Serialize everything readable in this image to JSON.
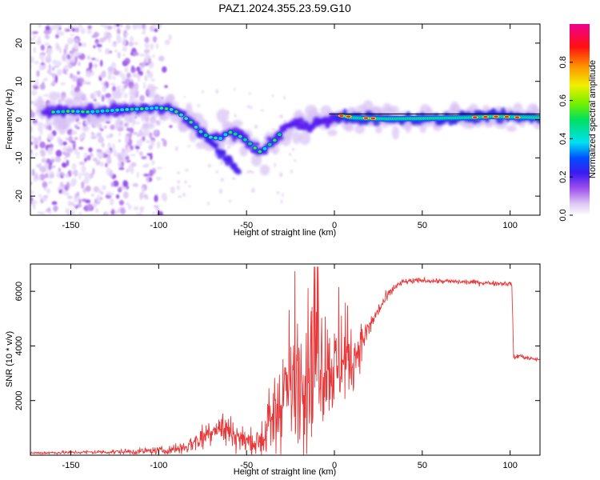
{
  "title": "PAZ1.2024.355.23.59.G10",
  "colors": {
    "snr_line": "#e8393a",
    "axis": "#000000",
    "track_ref": "#000000"
  },
  "chart_data": [
    {
      "type": "heatmap",
      "xlabel": "Height of straight line (km)",
      "ylabel": "Frequency (Hz)",
      "xlim": [
        -173,
        117
      ],
      "ylim": [
        -25,
        25
      ],
      "xticks": [
        -150,
        -100,
        -50,
        0,
        50,
        100
      ],
      "yticks": [
        -20,
        -10,
        0,
        10,
        20
      ],
      "colorbar": {
        "label": "Normalized spectral amplitude",
        "range": [
          0,
          1
        ],
        "ticks": [
          0.0,
          0.2,
          0.4,
          0.6,
          0.8
        ],
        "colormap": "rainbow (white-lavender-purple-blue-cyan-green-yellow-red-magenta)"
      },
      "main_track": [
        {
          "x": -160,
          "y": 2
        },
        {
          "x": -150,
          "y": 2.2
        },
        {
          "x": -140,
          "y": 2
        },
        {
          "x": -130,
          "y": 2.3
        },
        {
          "x": -120,
          "y": 2.6
        },
        {
          "x": -110,
          "y": 2.8
        },
        {
          "x": -100,
          "y": 3.1
        },
        {
          "x": -92,
          "y": 2.6
        },
        {
          "x": -88,
          "y": 1.5
        },
        {
          "x": -82,
          "y": -0.5
        },
        {
          "x": -77,
          "y": -2.8
        },
        {
          "x": -72,
          "y": -4.5
        },
        {
          "x": -65,
          "y": -5
        },
        {
          "x": -60,
          "y": -3.2
        },
        {
          "x": -55,
          "y": -4
        },
        {
          "x": -50,
          "y": -5.5
        },
        {
          "x": -45,
          "y": -7.5
        },
        {
          "x": -42,
          "y": -8.5
        },
        {
          "x": -38,
          "y": -7
        },
        {
          "x": -33,
          "y": -5
        },
        {
          "x": -28,
          "y": -2
        },
        {
          "x": -22,
          "y": -1
        },
        {
          "x": -15,
          "y": -1.5
        },
        {
          "x": -8,
          "y": -0.5
        },
        {
          "x": -3,
          "y": 0
        },
        {
          "x": 0,
          "y": 0.3
        },
        {
          "x": 5,
          "y": 1
        },
        {
          "x": 10,
          "y": 0.5
        },
        {
          "x": 20,
          "y": 0.3
        },
        {
          "x": 30,
          "y": 0.2
        },
        {
          "x": 50,
          "y": 0.3
        },
        {
          "x": 75,
          "y": 0.5
        },
        {
          "x": 90,
          "y": 0.8
        },
        {
          "x": 100,
          "y": 0.7
        },
        {
          "x": 117,
          "y": 0.5
        }
      ],
      "secondary_track": [
        {
          "x": -77,
          "y": -3
        },
        {
          "x": -70,
          "y": -6
        },
        {
          "x": -64,
          "y": -9
        },
        {
          "x": -58,
          "y": -11.5
        },
        {
          "x": -54,
          "y": -13.5
        }
      ],
      "reference_line": {
        "x_start": -3,
        "x_end": 117,
        "y": 1.5
      }
    },
    {
      "type": "line",
      "xlabel": "Height of straight line (km)",
      "ylabel": "SNR (10 * v/v)",
      "xlim": [
        -173,
        117
      ],
      "ylim": [
        0,
        7000
      ],
      "xticks": [
        -150,
        -100,
        -50,
        0,
        50,
        100
      ],
      "yticks": [
        2000,
        4000,
        6000
      ],
      "series": [
        {
          "envelope": [
            [
              -173,
              80
            ],
            [
              -140,
              110
            ],
            [
              -115,
              130
            ],
            [
              -95,
              180
            ],
            [
              -85,
              300
            ],
            [
              -75,
              650
            ],
            [
              -68,
              1050
            ],
            [
              -60,
              900
            ],
            [
              -52,
              550
            ],
            [
              -45,
              450
            ],
            [
              -40,
              700
            ],
            [
              -35,
              1200
            ],
            [
              -30,
              2000
            ],
            [
              -25,
              2500
            ],
            [
              -20,
              2800
            ],
            [
              -15,
              3300
            ],
            [
              -10,
              3500
            ],
            [
              -5,
              3300
            ],
            [
              0,
              3100
            ],
            [
              5,
              3300
            ],
            [
              10,
              3400
            ],
            [
              15,
              4100
            ],
            [
              20,
              4700
            ],
            [
              25,
              5300
            ],
            [
              30,
              5800
            ],
            [
              35,
              6200
            ],
            [
              40,
              6350
            ],
            [
              50,
              6400
            ],
            [
              60,
              6370
            ],
            [
              70,
              6350
            ],
            [
              80,
              6330
            ],
            [
              90,
              6300
            ],
            [
              100,
              6280
            ],
            [
              101,
              6250
            ],
            [
              102,
              3550
            ],
            [
              105,
              3650
            ],
            [
              110,
              3550
            ],
            [
              117,
              3500
            ]
          ],
          "noise": [
            [
              -173,
              60
            ],
            [
              -140,
              90
            ],
            [
              -120,
              120
            ],
            [
              -95,
              200
            ],
            [
              -85,
              350
            ],
            [
              -75,
              650
            ],
            [
              -65,
              800
            ],
            [
              -55,
              700
            ],
            [
              -45,
              600
            ],
            [
              -38,
              1400
            ],
            [
              -30,
              2400
            ],
            [
              -25,
              2500
            ],
            [
              -20,
              2800
            ],
            [
              -15,
              3000
            ],
            [
              -10,
              3200
            ],
            [
              -5,
              2500
            ],
            [
              0,
              2200
            ],
            [
              5,
              1700
            ],
            [
              10,
              1400
            ],
            [
              15,
              900
            ],
            [
              20,
              500
            ],
            [
              25,
              350
            ],
            [
              30,
              250
            ],
            [
              40,
              150
            ],
            [
              50,
              120
            ],
            [
              100,
              120
            ],
            [
              101,
              150
            ],
            [
              105,
              110
            ],
            [
              117,
              100
            ]
          ]
        }
      ]
    }
  ]
}
